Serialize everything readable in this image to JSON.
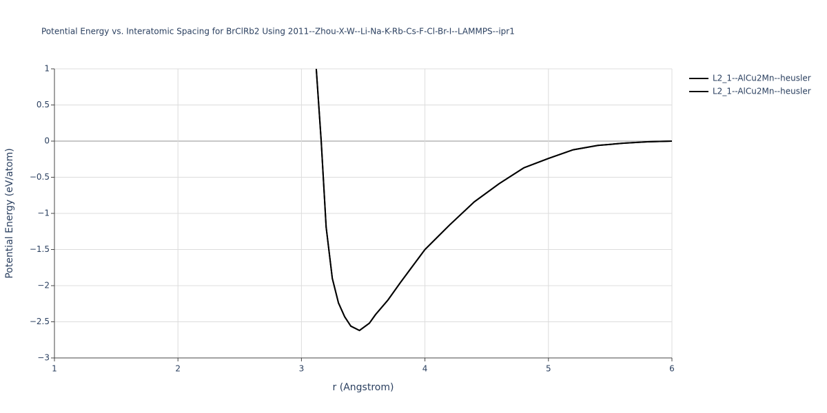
{
  "chart_data": {
    "type": "line",
    "title": "Potential Energy vs. Interatomic Spacing for BrClRb2 Using 2011--Zhou-X-W--Li-Na-K-Rb-Cs-F-Cl-Br-I--LAMMPS--ipr1",
    "x_label": "r (Angstrom)",
    "y_label": "Potential Energy (eV/atom)",
    "x": [
      3.12,
      3.16,
      3.2,
      3.25,
      3.3,
      3.35,
      3.4,
      3.47,
      3.55,
      3.6,
      3.7,
      3.8,
      3.9,
      4.0,
      4.2,
      4.4,
      4.6,
      4.8,
      5.0,
      5.2,
      5.4,
      5.6,
      5.8,
      6.0
    ],
    "series": [
      {
        "name": "L2_1--AlCu2Mn--heusler",
        "color": "#000000",
        "values": [
          1.0,
          0.0,
          -1.19,
          -1.9,
          -2.24,
          -2.43,
          -2.56,
          -2.62,
          -2.52,
          -2.4,
          -2.2,
          -1.96,
          -1.73,
          -1.5,
          -1.16,
          -0.84,
          -0.59,
          -0.37,
          -0.24,
          -0.12,
          -0.06,
          -0.03,
          -0.01,
          0.0
        ]
      },
      {
        "name": "L2_1--AlCu2Mn--heusler",
        "color": "#000000",
        "values": [
          1.0,
          0.0,
          -1.19,
          -1.9,
          -2.24,
          -2.43,
          -2.56,
          -2.62,
          -2.52,
          -2.4,
          -2.2,
          -1.96,
          -1.73,
          -1.5,
          -1.16,
          -0.84,
          -0.59,
          -0.37,
          -0.24,
          -0.12,
          -0.06,
          -0.03,
          -0.01,
          0.0
        ]
      }
    ],
    "xlim": [
      1,
      6
    ],
    "xticks": [
      1,
      2,
      3,
      4,
      5,
      6
    ],
    "ylim": [
      -3,
      1
    ],
    "yticks": [
      {
        "value": -3,
        "label": "−3"
      },
      {
        "value": -2.5,
        "label": "−2.5"
      },
      {
        "value": -2,
        "label": "−2"
      },
      {
        "value": -1.5,
        "label": "−1.5"
      },
      {
        "value": -1,
        "label": "−1"
      },
      {
        "value": -0.5,
        "label": "−0.5"
      },
      0,
      0.5,
      1
    ],
    "grid": true,
    "legend": "right"
  }
}
